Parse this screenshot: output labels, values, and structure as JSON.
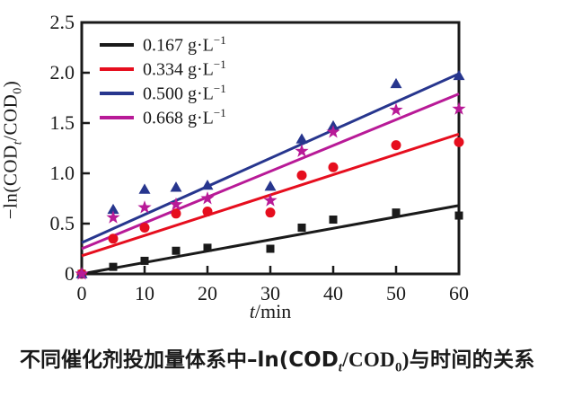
{
  "chart_data": {
    "type": "scatter",
    "x": [
      0,
      5,
      10,
      15,
      20,
      30,
      35,
      40,
      50,
      60
    ],
    "series": [
      {
        "name": "0.167 g·L−1",
        "conc": "0.167",
        "unit": "g·L",
        "unit_sup": "−1",
        "marker": "square",
        "color": "#1a1a1a",
        "values": [
          0,
          0.07,
          0.13,
          0.23,
          0.26,
          0.25,
          0.46,
          0.54,
          0.61,
          0.58
        ],
        "fit_y0": 0.0,
        "fit_y60": 0.68
      },
      {
        "name": "0.334 g·L−1",
        "conc": "0.334",
        "unit": "g·L",
        "unit_sup": "−1",
        "marker": "circle",
        "color": "#e60e1e",
        "values": [
          0,
          0.35,
          0.46,
          0.6,
          0.62,
          0.61,
          0.98,
          1.06,
          1.28,
          1.31
        ],
        "fit_y0": 0.18,
        "fit_y60": 1.39
      },
      {
        "name": "0.500 g·L−1",
        "conc": "0.500",
        "unit": "g·L",
        "unit_sup": "−1",
        "marker": "triangle",
        "color": "#27368e",
        "values": [
          0,
          0.64,
          0.84,
          0.86,
          0.88,
          0.87,
          1.34,
          1.47,
          1.89,
          1.97
        ],
        "fit_y0": 0.31,
        "fit_y60": 1.99
      },
      {
        "name": "0.668 g·L−1",
        "conc": "0.668",
        "unit": "g·L",
        "unit_sup": "−1",
        "marker": "star",
        "color": "#b81a97",
        "values": [
          0,
          0.56,
          0.66,
          0.69,
          0.75,
          0.73,
          1.22,
          1.41,
          1.63,
          1.64
        ],
        "fit_y0": 0.25,
        "fit_y60": 1.79
      }
    ],
    "xlim": [
      0,
      60
    ],
    "ylim": [
      0,
      2.5
    ],
    "xticks": {
      "values": [
        0,
        10,
        20,
        30,
        40,
        50,
        60
      ],
      "labels": [
        "0",
        "10",
        "20",
        "30",
        "40",
        "50",
        "60"
      ]
    },
    "yticks": {
      "values": [
        0,
        0.5,
        1.0,
        1.5,
        2.0,
        2.5
      ],
      "labels": [
        "0",
        "0.5",
        "1.0",
        "1.5",
        "2.0",
        "2.5"
      ]
    },
    "grid": false,
    "legend_position": "top-left",
    "title": "",
    "xlabel": "t/min",
    "ylabel": "−ln(CODt/COD0)"
  },
  "xlabel": {
    "var": "t",
    "rest": "/min"
  },
  "ylabel": {
    "p1": "−ln(COD",
    "sub1": "t",
    "p2": "/COD",
    "sub2": "0",
    "p3": ")"
  },
  "caption": {
    "pre": "不同催化剂投加量体系中–ln(COD",
    "sub1": "t",
    "mid": "/COD",
    "sub2": "0",
    "post": ")与时间的关系"
  }
}
